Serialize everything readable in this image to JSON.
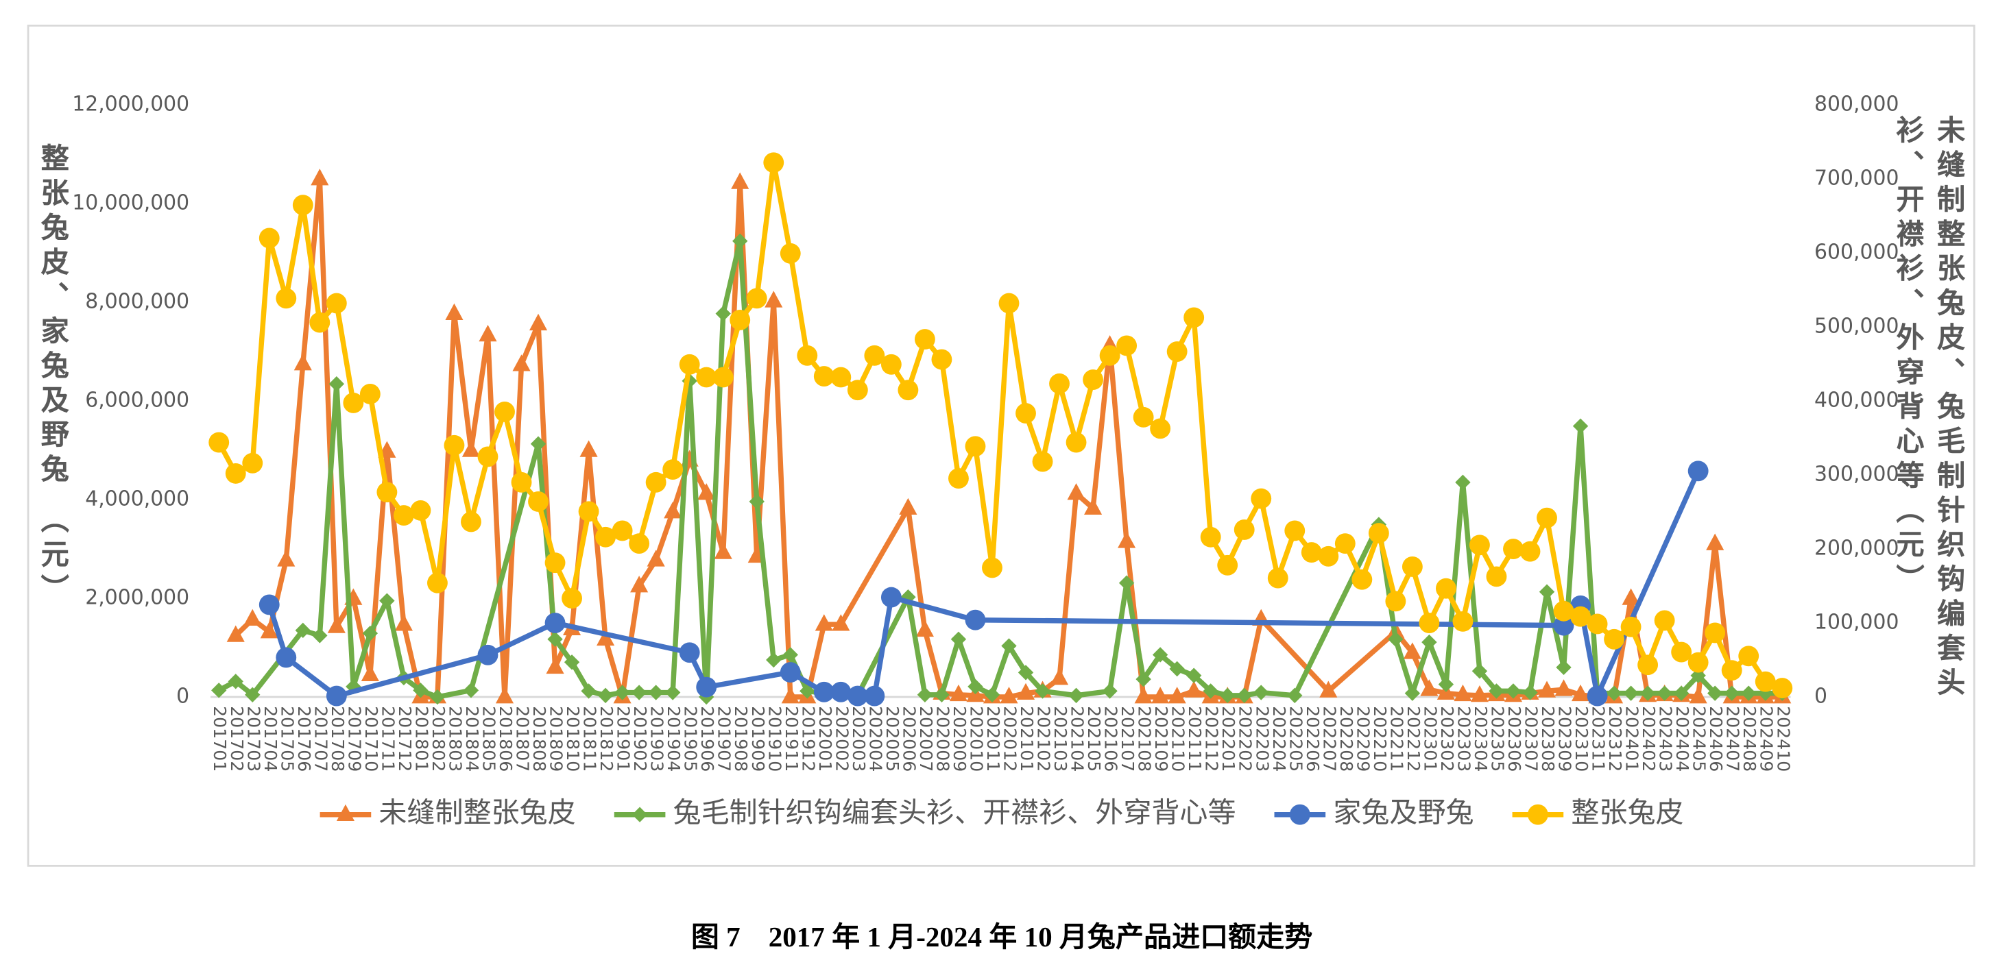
{
  "chart_data": {
    "type": "line",
    "caption": "图 7　2017 年 1 月-2024 年 10 月兔产品进口额走势",
    "y_label": "整张兔皮、家兔及野兔 （元）",
    "y2_label": "未缝制整张兔皮、兔毛制针织钩编套头衫、开襟衫、外穿背心等（元）",
    "connect_gaps": true,
    "legend": "bottom",
    "categories": [
      "201701",
      "201702",
      "201703",
      "201704",
      "201705",
      "201706",
      "201707",
      "201708",
      "201709",
      "201710",
      "201711",
      "201712",
      "201801",
      "201802",
      "201803",
      "201804",
      "201805",
      "201806",
      "201807",
      "201808",
      "201809",
      "201810",
      "201811",
      "201812",
      "201901",
      "201902",
      "201903",
      "201904",
      "201905",
      "201906",
      "201907",
      "201908",
      "201909",
      "201910",
      "201911",
      "201912",
      "202001",
      "202002",
      "202003",
      "202004",
      "202005",
      "202006",
      "202007",
      "202008",
      "202009",
      "202010",
      "202011",
      "202012",
      "202101",
      "202102",
      "202103",
      "202104",
      "202105",
      "202106",
      "202107",
      "202108",
      "202109",
      "202110",
      "202111",
      "202112",
      "202201",
      "202202",
      "202203",
      "202204",
      "202205",
      "202206",
      "202207",
      "202208",
      "202209",
      "202210",
      "202211",
      "202212",
      "202301",
      "202302",
      "202303",
      "202304",
      "202305",
      "202306",
      "202307",
      "202308",
      "202309",
      "202310",
      "202311",
      "202312",
      "202401",
      "202402",
      "202403",
      "202404",
      "202405",
      "202406",
      "202407",
      "202408",
      "202409",
      "202410"
    ],
    "ylim": [
      0,
      12000000
    ],
    "yticks": [
      0,
      {
        "value": 2000000,
        "label": "2,000,000"
      },
      {
        "value": 4000000,
        "label": "4,000,000"
      },
      {
        "value": 6000000,
        "label": "6,000,000"
      },
      {
        "value": 8000000,
        "label": "8,000,000"
      },
      {
        "value": 10000000,
        "label": "10,000,000"
      },
      {
        "value": 12000000,
        "label": "12,000,000"
      }
    ],
    "y2lim": [
      0,
      800000
    ],
    "y2ticks": [
      0,
      {
        "value": 100000,
        "label": "100,000"
      },
      {
        "value": 200000,
        "label": "200,000"
      },
      {
        "value": 300000,
        "label": "300,000"
      },
      {
        "value": 400000,
        "label": "400,000"
      },
      {
        "value": 500000,
        "label": "500,000"
      },
      {
        "value": 600000,
        "label": "600,000"
      },
      {
        "value": 700000,
        "label": "700,000"
      },
      {
        "value": 800000,
        "label": "800,000"
      }
    ],
    "series": [
      {
        "name": "未缝制整张兔皮",
        "color": "#ED7D31",
        "marker": "triangle",
        "axis": "y2",
        "values": [
          null,
          83000,
          105000,
          88000,
          185000,
          450000,
          700000,
          95000,
          133000,
          30000,
          332000,
          98000,
          0,
          0,
          518000,
          333000,
          489000,
          0,
          449000,
          504000,
          40000,
          92000,
          333000,
          78000,
          0,
          150000,
          185000,
          250000,
          320000,
          275000,
          195000,
          695000,
          190000,
          535000,
          0,
          0,
          98000,
          98000,
          null,
          null,
          null,
          255000,
          90000,
          5000,
          3000,
          2000,
          0,
          0,
          5000,
          8000,
          25000,
          275000,
          255000,
          475000,
          210000,
          0,
          0,
          0,
          8000,
          0,
          0,
          0,
          105000,
          null,
          null,
          null,
          8000,
          null,
          null,
          null,
          88000,
          60000,
          10000,
          5000,
          3000,
          2000,
          3000,
          2000,
          5000,
          8000,
          10000,
          3000,
          0,
          0,
          133000,
          2000,
          3000,
          2000,
          0,
          207000,
          0,
          0,
          0,
          0
        ]
      },
      {
        "name": "兔毛制针织钩编套头衫、开襟衫、外穿背心等",
        "color": "#70AD47",
        "marker": "diamond",
        "axis": "y2",
        "values": [
          9000,
          21000,
          3000,
          null,
          null,
          90000,
          83000,
          423000,
          14000,
          86000,
          130000,
          26000,
          9000,
          0,
          null,
          9000,
          null,
          null,
          null,
          342000,
          78000,
          47000,
          8000,
          2000,
          6000,
          6000,
          6000,
          6000,
          427000,
          0,
          518000,
          616000,
          264000,
          50000,
          57000,
          8000,
          5000,
          5000,
          2000,
          null,
          null,
          135000,
          3000,
          3000,
          78000,
          14000,
          3000,
          69000,
          33000,
          8000,
          null,
          2000,
          null,
          8000,
          154000,
          24000,
          57000,
          38000,
          29000,
          8000,
          2000,
          2000,
          6000,
          null,
          2000,
          null,
          null,
          null,
          null,
          233000,
          78000,
          5000,
          74000,
          17000,
          290000,
          35000,
          8000,
          8000,
          6000,
          142000,
          40000,
          366000,
          5000,
          5000,
          5000,
          5000,
          5000,
          5000,
          29000,
          5000,
          5000,
          5000,
          5000,
          5000
        ]
      },
      {
        "name": "家兔及野兔",
        "color": "#4472C4",
        "marker": "circle",
        "values": [
          null,
          null,
          null,
          1870000,
          800000,
          null,
          null,
          20000,
          null,
          null,
          null,
          null,
          null,
          null,
          null,
          null,
          850000,
          null,
          null,
          null,
          1500000,
          null,
          null,
          null,
          null,
          null,
          null,
          null,
          900000,
          200000,
          null,
          null,
          null,
          null,
          500000,
          null,
          100000,
          100000,
          20000,
          20000,
          2020000,
          null,
          null,
          null,
          null,
          1560000,
          null,
          null,
          null,
          null,
          null,
          null,
          null,
          null,
          null,
          null,
          null,
          null,
          null,
          null,
          null,
          null,
          null,
          null,
          null,
          null,
          null,
          null,
          null,
          null,
          null,
          null,
          null,
          null,
          null,
          null,
          null,
          null,
          null,
          null,
          1450000,
          1850000,
          20000,
          null,
          null,
          null,
          null,
          null,
          4580000,
          null,
          null,
          null,
          null,
          null
        ]
      },
      {
        "name": "整张兔皮",
        "color": "#FFC000",
        "marker": "circle",
        "values": [
          5160000,
          4530000,
          4740000,
          9300000,
          8080000,
          9970000,
          7590000,
          7980000,
          5960000,
          6140000,
          4150000,
          3680000,
          3780000,
          2310000,
          5100000,
          3550000,
          4870000,
          5780000,
          4350000,
          3960000,
          2720000,
          2000000,
          3760000,
          3240000,
          3370000,
          3110000,
          4350000,
          4610000,
          6740000,
          6480000,
          6480000,
          7640000,
          8080000,
          10830000,
          8990000,
          6920000,
          6500000,
          6480000,
          6220000,
          6920000,
          6740000,
          6220000,
          7250000,
          6840000,
          4430000,
          5080000,
          2620000,
          7980000,
          5750000,
          4770000,
          6350000,
          5160000,
          6430000,
          6920000,
          7120000,
          5670000,
          5440000,
          7000000,
          7690000,
          3240000,
          2670000,
          3390000,
          4020000,
          2410000,
          3370000,
          2930000,
          2850000,
          3110000,
          2380000,
          3320000,
          1940000,
          2640000,
          1500000,
          2200000,
          1530000,
          3080000,
          2440000,
          3000000,
          2950000,
          3630000,
          1740000,
          1630000,
          1480000,
          1170000,
          1420000,
          650000,
          1550000,
          910000,
          700000,
          1300000,
          540000,
          830000,
          310000,
          180000
        ]
      }
    ]
  }
}
